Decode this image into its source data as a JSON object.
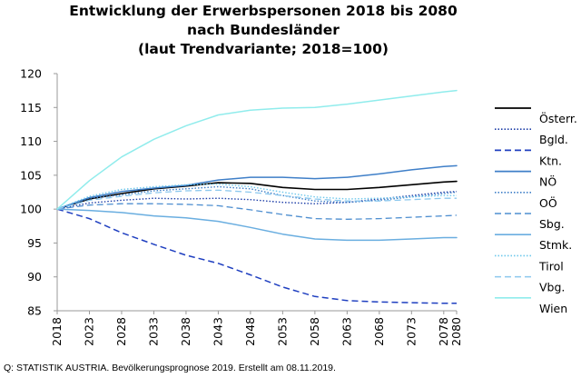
{
  "chart_data": {
    "type": "line",
    "title": [
      "Entwicklung der Erwerbspersonen 2018 bis 2080",
      "nach Bundesländer",
      "(laut Trendvariante; 2018=100)"
    ],
    "ylim": [
      85,
      120
    ],
    "yticks": [
      85,
      90,
      95,
      100,
      105,
      110,
      115,
      120
    ],
    "x_range": [
      2018,
      2080
    ],
    "xticks": [
      2018,
      2023,
      2028,
      2033,
      2038,
      2043,
      2048,
      2053,
      2058,
      2063,
      2068,
      2073,
      2078,
      2080
    ],
    "grid": false,
    "legend_position": "right",
    "series": [
      {
        "name": "Österr.",
        "color": "#000000",
        "dash": "",
        "width": 1.6,
        "x": [
          2018,
          2023,
          2028,
          2033,
          2038,
          2043,
          2048,
          2053,
          2058,
          2063,
          2068,
          2073,
          2078,
          2080
        ],
        "y": [
          100,
          101.5,
          102.3,
          103.0,
          103.4,
          103.9,
          103.8,
          103.2,
          102.9,
          102.9,
          103.2,
          103.6,
          104.0,
          104.1
        ]
      },
      {
        "name": "Bgld.",
        "color": "#1f3fa8",
        "dash": "1.5,2",
        "width": 1.4,
        "x": [
          2018,
          2023,
          2028,
          2033,
          2038,
          2043,
          2048,
          2053,
          2058,
          2063,
          2068,
          2073,
          2078,
          2080
        ],
        "y": [
          100,
          100.9,
          101.3,
          101.6,
          101.5,
          101.6,
          101.4,
          101.0,
          100.8,
          101.0,
          101.5,
          102.0,
          102.5,
          102.6
        ]
      },
      {
        "name": "Ktn.",
        "color": "#1f3fc0",
        "dash": "7,4",
        "width": 1.5,
        "x": [
          2018,
          2023,
          2028,
          2033,
          2038,
          2043,
          2048,
          2053,
          2058,
          2063,
          2068,
          2073,
          2078,
          2080
        ],
        "y": [
          100,
          98.6,
          96.5,
          94.8,
          93.2,
          92.0,
          90.3,
          88.5,
          87.1,
          86.5,
          86.3,
          86.2,
          86.1,
          86.1
        ]
      },
      {
        "name": "NÖ",
        "color": "#3f7fc8",
        "dash": "",
        "width": 1.5,
        "x": [
          2018,
          2023,
          2028,
          2033,
          2038,
          2043,
          2048,
          2053,
          2058,
          2063,
          2068,
          2073,
          2078,
          2080
        ],
        "y": [
          100,
          101.7,
          102.6,
          103.1,
          103.5,
          104.3,
          104.7,
          104.7,
          104.5,
          104.7,
          105.2,
          105.8,
          106.3,
          106.4
        ]
      },
      {
        "name": "OÖ",
        "color": "#3f7fc8",
        "dash": "1.5,2",
        "width": 1.4,
        "x": [
          2018,
          2023,
          2028,
          2033,
          2038,
          2043,
          2048,
          2053,
          2058,
          2063,
          2068,
          2073,
          2078,
          2080
        ],
        "y": [
          100,
          101.6,
          102.1,
          102.7,
          103.0,
          103.3,
          103.0,
          102.0,
          101.2,
          101.0,
          101.3,
          101.8,
          102.3,
          102.5
        ]
      },
      {
        "name": "Sbg.",
        "color": "#4f8fd0",
        "dash": "7,4",
        "width": 1.3,
        "x": [
          2018,
          2023,
          2028,
          2033,
          2038,
          2043,
          2048,
          2053,
          2058,
          2063,
          2068,
          2073,
          2078,
          2080
        ],
        "y": [
          100,
          100.6,
          100.8,
          100.8,
          100.7,
          100.5,
          99.9,
          99.2,
          98.6,
          98.5,
          98.6,
          98.8,
          99.0,
          99.1
        ]
      },
      {
        "name": "Stmk.",
        "color": "#6aaee0",
        "dash": "",
        "width": 1.5,
        "x": [
          2018,
          2023,
          2028,
          2033,
          2038,
          2043,
          2048,
          2053,
          2058,
          2063,
          2068,
          2073,
          2078,
          2080
        ],
        "y": [
          100,
          99.8,
          99.5,
          99.0,
          98.7,
          98.2,
          97.3,
          96.3,
          95.6,
          95.4,
          95.4,
          95.6,
          95.8,
          95.8
        ]
      },
      {
        "name": "Tirol",
        "color": "#6ec8ec",
        "dash": "1.5,2",
        "width": 1.4,
        "x": [
          2018,
          2023,
          2028,
          2033,
          2038,
          2043,
          2048,
          2053,
          2058,
          2063,
          2068,
          2073,
          2078,
          2080
        ],
        "y": [
          100,
          101.9,
          102.9,
          103.3,
          103.6,
          103.7,
          103.3,
          102.5,
          101.8,
          101.5,
          101.6,
          101.8,
          102.0,
          102.0
        ]
      },
      {
        "name": "Vbg.",
        "color": "#8cc8ee",
        "dash": "7,4",
        "width": 1.3,
        "x": [
          2018,
          2023,
          2028,
          2033,
          2038,
          2043,
          2048,
          2053,
          2058,
          2063,
          2068,
          2073,
          2078,
          2080
        ],
        "y": [
          100,
          101.3,
          101.9,
          102.4,
          102.7,
          102.8,
          102.5,
          102.0,
          101.5,
          101.2,
          101.2,
          101.4,
          101.6,
          101.6
        ]
      },
      {
        "name": "Wien",
        "color": "#90ecec",
        "dash": "",
        "width": 1.5,
        "x": [
          2018,
          2023,
          2028,
          2033,
          2038,
          2043,
          2048,
          2053,
          2058,
          2063,
          2068,
          2073,
          2078,
          2080
        ],
        "y": [
          100,
          104.2,
          107.7,
          110.3,
          112.3,
          113.9,
          114.6,
          114.9,
          115.0,
          115.5,
          116.1,
          116.7,
          117.3,
          117.5
        ]
      }
    ]
  },
  "source": "Q: STATISTIK AUSTRIA. Bevölkerungsprognose 2019. Erstellt am 08.11.2019."
}
